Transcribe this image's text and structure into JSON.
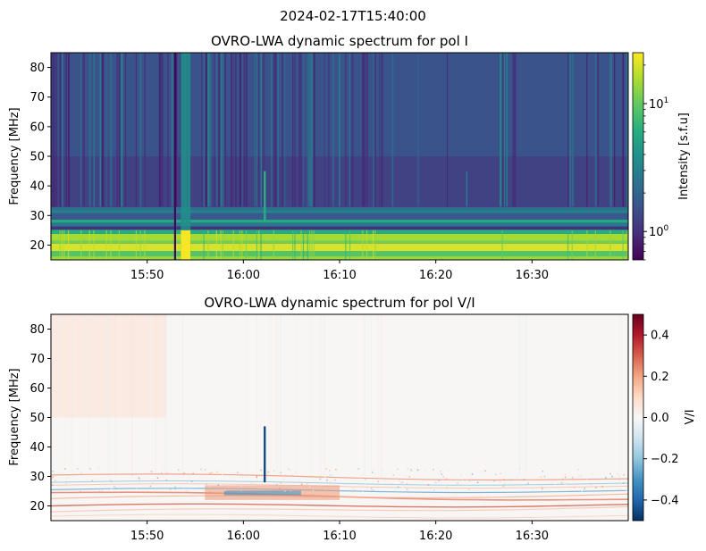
{
  "figure": {
    "suptitle": "2024-02-17T15:40:00"
  },
  "chart_data": [
    {
      "type": "heatmap",
      "title": "OVRO-LWA dynamic spectrum for pol I",
      "xlabel": "",
      "ylabel": "Frequency [MHz]",
      "x_range": [
        "15:40:00",
        "16:40:00"
      ],
      "x_tick_labels": [
        "15:50",
        "16:00",
        "16:10",
        "16:20",
        "16:30"
      ],
      "x_tick_values_min": [
        10,
        20,
        30,
        40,
        50
      ],
      "ylim": [
        15,
        85
      ],
      "y_ticks": [
        20,
        30,
        40,
        50,
        60,
        70,
        80
      ],
      "colorbar": {
        "label": "Intensity [s.f.u]",
        "scale": "log",
        "range": [
          0.6,
          25
        ],
        "major_tick_labels": [
          "10^0",
          "10^1"
        ],
        "major_tick_values": [
          1,
          10
        ],
        "colormap": "viridis"
      },
      "features": {
        "bright_band_mhz": [
          15,
          25
        ],
        "band_edges_mhz": [
          26,
          28.5,
          31,
          33
        ],
        "bright_vertical_column_min": [
          13.5,
          14.5
        ],
        "dark_vertical_line_min": 12.8,
        "burst_time_min": 22.2,
        "burst_freq_mhz": [
          28,
          45
        ],
        "faint_burst_time_min": 43.2
      }
    },
    {
      "type": "heatmap",
      "title": "OVRO-LWA dynamic spectrum for pol V/I",
      "xlabel": "",
      "ylabel": "Frequency [MHz]",
      "x_range": [
        "15:40:00",
        "16:40:00"
      ],
      "x_tick_labels": [
        "15:50",
        "16:00",
        "16:10",
        "16:20",
        "16:30"
      ],
      "x_tick_values_min": [
        10,
        20,
        30,
        40,
        50
      ],
      "ylim": [
        15,
        85
      ],
      "y_ticks": [
        20,
        30,
        40,
        50,
        60,
        70,
        80
      ],
      "colorbar": {
        "label": "V/I",
        "scale": "linear",
        "range": [
          -0.5,
          0.5
        ],
        "tick_labels": [
          "0.4",
          "0.2",
          "0.0",
          "−0.2",
          "−0.4"
        ],
        "tick_values": [
          0.4,
          0.2,
          0.0,
          -0.2,
          -0.4
        ],
        "colormap": "RdBu_r"
      },
      "features": {
        "burst_time_min": 22.2,
        "burst_freq_mhz": [
          28,
          47
        ],
        "burst_value": -0.45
      }
    }
  ]
}
